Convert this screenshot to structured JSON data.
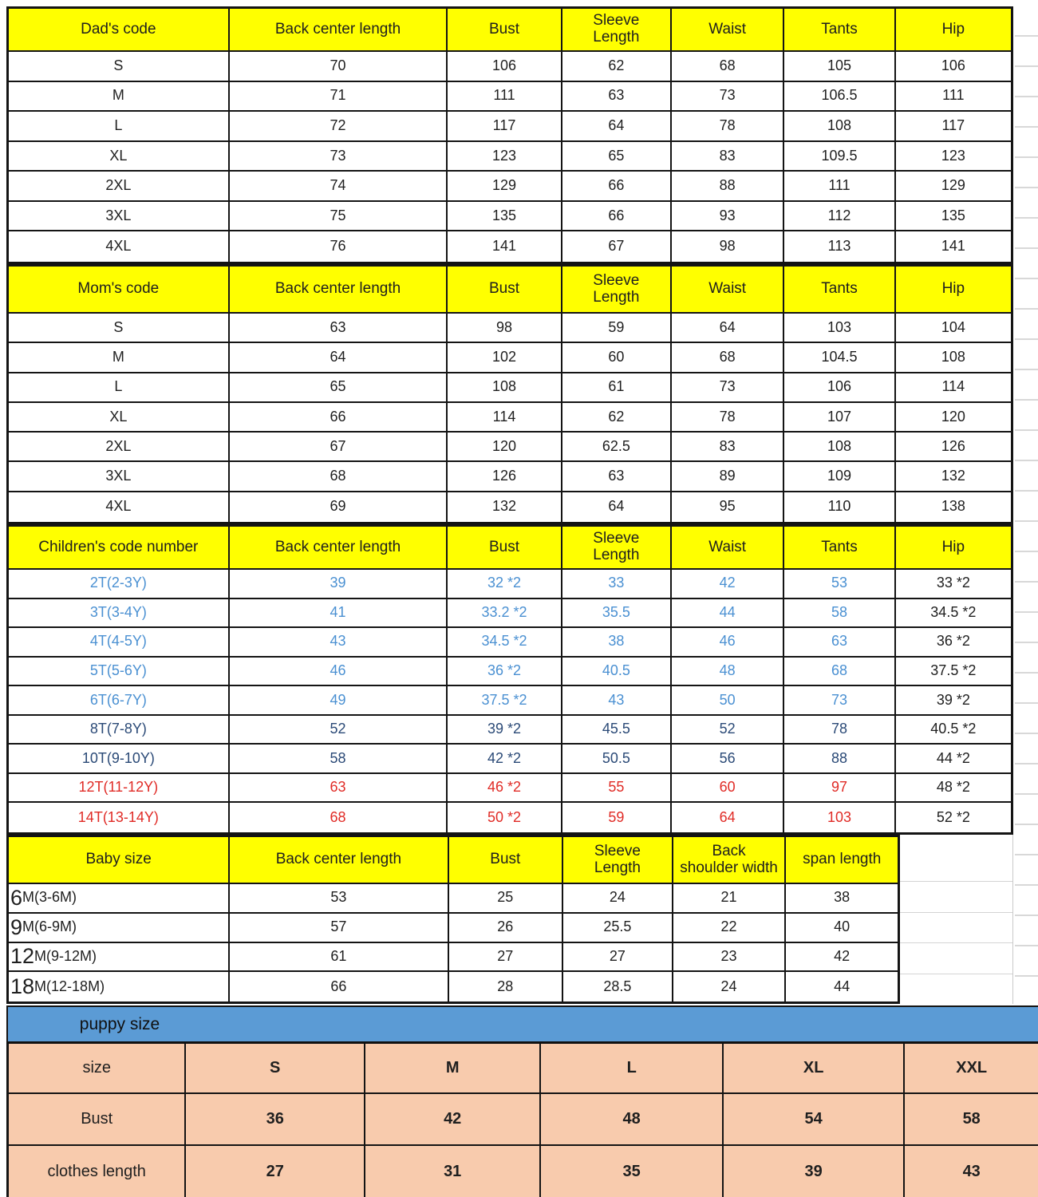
{
  "colors": {
    "header_yellow": "#ffff00",
    "band_blue": "#5b9bd5",
    "puppy_pink": "#f8cbad",
    "text_black": "#1f1f1f",
    "text_blue": "#4a90d2",
    "text_navy": "#2b4a77",
    "text_red": "#e02b26"
  },
  "chart_data": [
    {
      "type": "table",
      "name": "dad",
      "columns": [
        "Dad's code",
        "Back center length",
        "Bust",
        "Sleeve\nLength",
        "Waist",
        "Tants",
        "Hip"
      ],
      "rows": [
        {
          "label": "S",
          "color": "black",
          "values": [
            "70",
            "106",
            "62",
            "68",
            "105",
            "106"
          ]
        },
        {
          "label": "M",
          "color": "black",
          "values": [
            "71",
            "111",
            "63",
            "73",
            "106.5",
            "111"
          ]
        },
        {
          "label": "L",
          "color": "black",
          "values": [
            "72",
            "117",
            "64",
            "78",
            "108",
            "117"
          ]
        },
        {
          "label": "XL",
          "color": "black",
          "values": [
            "73",
            "123",
            "65",
            "83",
            "109.5",
            "123"
          ]
        },
        {
          "label": "2XL",
          "color": "black",
          "values": [
            "74",
            "129",
            "66",
            "88",
            "111",
            "129"
          ]
        },
        {
          "label": "3XL",
          "color": "black",
          "values": [
            "75",
            "135",
            "66",
            "93",
            "112",
            "135"
          ]
        },
        {
          "label": "4XL",
          "color": "black",
          "values": [
            "76",
            "141",
            "67",
            "98",
            "113",
            "141"
          ]
        }
      ]
    },
    {
      "type": "table",
      "name": "mom",
      "columns": [
        "Mom's code",
        "Back center length",
        "Bust",
        "Sleeve\nLength",
        "Waist",
        "Tants",
        "Hip"
      ],
      "rows": [
        {
          "label": "S",
          "color": "black",
          "values": [
            "63",
            "98",
            "59",
            "64",
            "103",
            "104"
          ]
        },
        {
          "label": "M",
          "color": "black",
          "values": [
            "64",
            "102",
            "60",
            "68",
            "104.5",
            "108"
          ]
        },
        {
          "label": "L",
          "color": "black",
          "values": [
            "65",
            "108",
            "61",
            "73",
            "106",
            "114"
          ]
        },
        {
          "label": "XL",
          "color": "black",
          "values": [
            "66",
            "114",
            "62",
            "78",
            "107",
            "120"
          ]
        },
        {
          "label": "2XL",
          "color": "black",
          "values": [
            "67",
            "120",
            "62.5",
            "83",
            "108",
            "126"
          ]
        },
        {
          "label": "3XL",
          "color": "black",
          "values": [
            "68",
            "126",
            "63",
            "89",
            "109",
            "132"
          ]
        },
        {
          "label": "4XL",
          "color": "black",
          "values": [
            "69",
            "132",
            "64",
            "95",
            "110",
            "138"
          ]
        }
      ]
    },
    {
      "type": "table",
      "name": "children",
      "last_value_black": true,
      "columns": [
        "Children's code number",
        "Back center length",
        "Bust",
        "Sleeve\nLength",
        "Waist",
        "Tants",
        "Hip"
      ],
      "rows": [
        {
          "label": "2T(2-3Y)",
          "color": "blue",
          "values": [
            "39",
            "32 *2",
            "33",
            "42",
            "53",
            "33 *2"
          ]
        },
        {
          "label": "3T(3-4Y)",
          "color": "blue",
          "values": [
            "41",
            "33.2 *2",
            "35.5",
            "44",
            "58",
            "34.5 *2"
          ]
        },
        {
          "label": "4T(4-5Y)",
          "color": "blue",
          "values": [
            "43",
            "34.5 *2",
            "38",
            "46",
            "63",
            "36 *2"
          ]
        },
        {
          "label": "5T(5-6Y)",
          "color": "blue",
          "values": [
            "46",
            "36 *2",
            "40.5",
            "48",
            "68",
            "37.5 *2"
          ]
        },
        {
          "label": "6T(6-7Y)",
          "color": "blue",
          "values": [
            "49",
            "37.5 *2",
            "43",
            "50",
            "73",
            "39 *2"
          ]
        },
        {
          "label": "8T(7-8Y)",
          "color": "navy",
          "values": [
            "52",
            "39 *2",
            "45.5",
            "52",
            "78",
            "40.5 *2"
          ]
        },
        {
          "label": "10T(9-10Y)",
          "color": "navy",
          "values": [
            "58",
            "42 *2",
            "50.5",
            "56",
            "88",
            "44 *2"
          ]
        },
        {
          "label": "12T(11-12Y)",
          "color": "red",
          "values": [
            "63",
            "46 *2",
            "55",
            "60",
            "97",
            "48 *2"
          ]
        },
        {
          "label": "14T(13-14Y)",
          "color": "red",
          "values": [
            "68",
            "50 *2",
            "59",
            "64",
            "103",
            "52 *2"
          ]
        }
      ]
    },
    {
      "type": "table",
      "name": "baby",
      "columns": [
        "Baby size",
        "Back center length",
        "Bust",
        "Sleeve\nLength",
        "Back\nshoulder width",
        "span length"
      ],
      "rows": [
        {
          "label_big": "6",
          "label_rest": "M(3-6M)",
          "color": "black",
          "values": [
            "53",
            "25",
            "24",
            "21",
            "38"
          ]
        },
        {
          "label_big": "9",
          "label_rest": "M(6-9M)",
          "color": "black",
          "values": [
            "57",
            "26",
            "25.5",
            "22",
            "40"
          ]
        },
        {
          "label_big": "12",
          "label_rest": "M(9-12M)",
          "color": "black",
          "values": [
            "61",
            "27",
            "27",
            "23",
            "42"
          ]
        },
        {
          "label_big": "18",
          "label_rest": "M(12-18M)",
          "color": "black",
          "values": [
            "66",
            "28",
            "28.5",
            "24",
            "44"
          ]
        }
      ]
    },
    {
      "type": "table",
      "name": "puppy",
      "title": "puppy size",
      "rows": [
        [
          "size",
          "S",
          "M",
          "L",
          "XL",
          "XXL"
        ],
        [
          "Bust",
          "36",
          "42",
          "48",
          "54",
          "58"
        ],
        [
          "clothes length",
          "27",
          "31",
          "35",
          "39",
          "43"
        ]
      ]
    }
  ]
}
